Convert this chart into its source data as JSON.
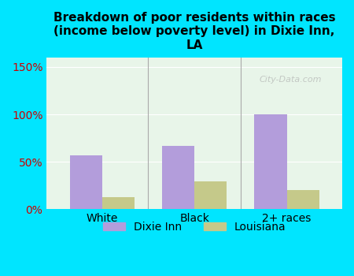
{
  "categories": [
    "White",
    "Black",
    "2+ races"
  ],
  "dixie_inn": [
    57,
    67,
    100
  ],
  "louisiana": [
    13,
    29,
    20
  ],
  "bar_color_dixie": "#b39ddb",
  "bar_color_louisiana": "#c5c98a",
  "title": "Breakdown of poor residents within races\n(income below poverty level) in Dixie Inn,\nLA",
  "title_fontsize": 11,
  "background_outer": "#00e5ff",
  "background_inner": "#e8f5e9",
  "yticks": [
    0,
    50,
    100,
    150
  ],
  "ytick_labels": [
    "0%",
    "50%",
    "100%",
    "150%"
  ],
  "ylim": [
    0,
    160
  ],
  "legend_labels": [
    "Dixie Inn",
    "Louisiana"
  ],
  "bar_width": 0.35,
  "watermark": "City-Data.com"
}
